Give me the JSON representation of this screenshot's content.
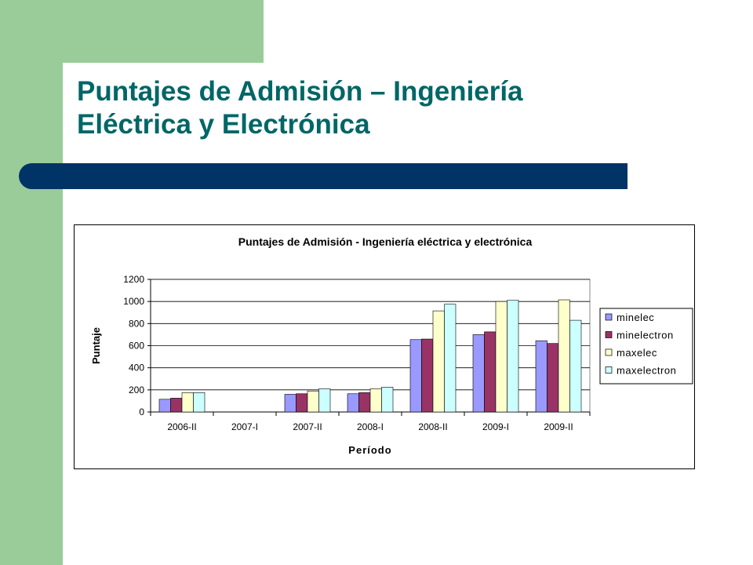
{
  "slide": {
    "title_line1": "Puntajes de Admisión – Ingeniería",
    "title_line2": "Eléctrica y Electrónica"
  },
  "colors": {
    "side_band": "#99cc99",
    "title_text": "#006666",
    "title_bar": "#003366"
  },
  "chart_data": {
    "type": "bar",
    "title": "Puntajes de Admisión - Ingeniería eléctrica y electrónica",
    "xlabel": "Período",
    "ylabel": "Puntaje",
    "ylim": [
      0,
      1200
    ],
    "yticks": [
      0,
      200,
      400,
      600,
      800,
      1000,
      1200
    ],
    "grid": true,
    "legend_position": "right",
    "categories": [
      "2006-II",
      "2007-I",
      "2007-II",
      "2008-I",
      "2008-II",
      "2009-I",
      "2009-II"
    ],
    "series": [
      {
        "name": "minelec",
        "color": "#9999ff",
        "values": [
          115,
          0,
          160,
          165,
          655,
          700,
          645
        ]
      },
      {
        "name": "minelectron",
        "color": "#993366",
        "values": [
          125,
          0,
          165,
          175,
          660,
          725,
          620
        ]
      },
      {
        "name": "maxelec",
        "color": "#ffffcc",
        "values": [
          175,
          0,
          190,
          210,
          915,
          1000,
          1015
        ]
      },
      {
        "name": "maxelectron",
        "color": "#ccffff",
        "values": [
          175,
          0,
          210,
          225,
          975,
          1010,
          830
        ]
      }
    ]
  }
}
